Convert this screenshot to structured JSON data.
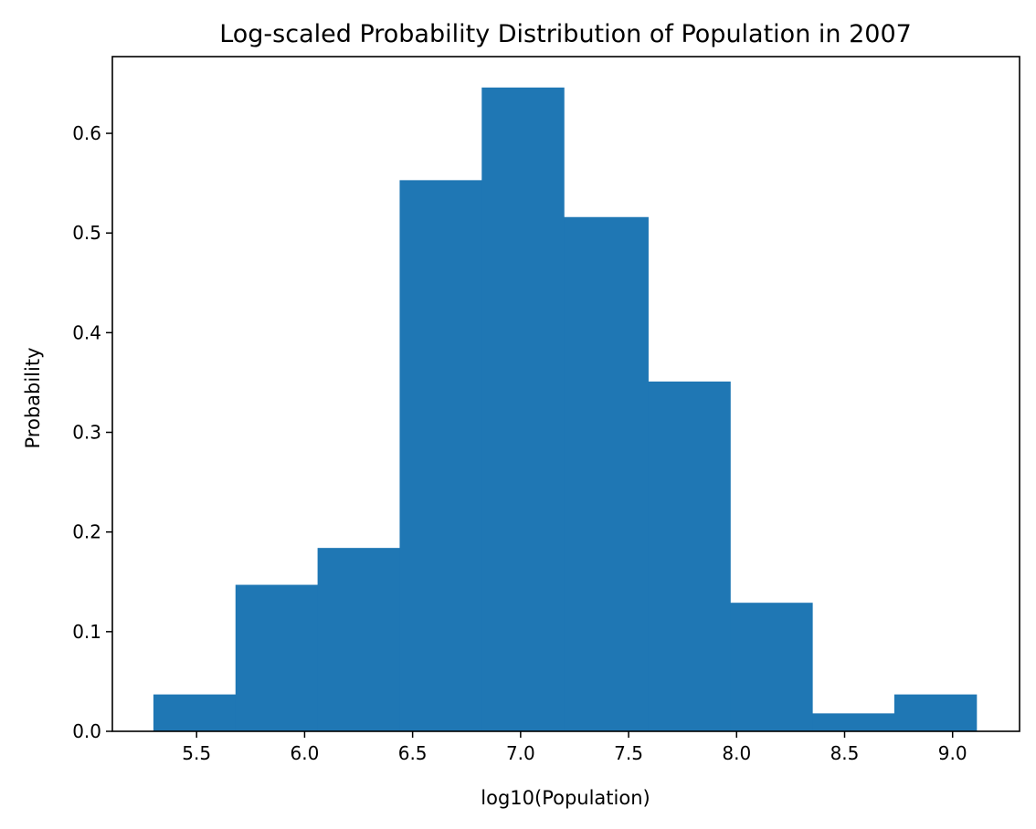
{
  "chart_data": {
    "type": "bar",
    "title": "Log-scaled Probability Distribution of Population in 2007",
    "xlabel": "log10(Population)",
    "ylabel": "Probability",
    "xlim": [
      5.11,
      9.31
    ],
    "ylim": [
      0,
      0.677
    ],
    "x_ticks": [
      "5.5",
      "6.0",
      "6.5",
      "7.0",
      "7.5",
      "8.0",
      "8.5",
      "9.0"
    ],
    "y_ticks": [
      "0.0",
      "0.1",
      "0.2",
      "0.3",
      "0.4",
      "0.5",
      "0.6"
    ],
    "bin_edges": [
      5.3,
      5.68,
      6.06,
      6.44,
      6.82,
      7.2,
      7.59,
      7.97,
      8.35,
      8.73,
      9.11
    ],
    "values": [
      0.037,
      0.147,
      0.184,
      0.553,
      0.646,
      0.516,
      0.351,
      0.129,
      0.018,
      0.037
    ],
    "bar_color": "#1f77b4",
    "grid": false,
    "legend": "none"
  }
}
